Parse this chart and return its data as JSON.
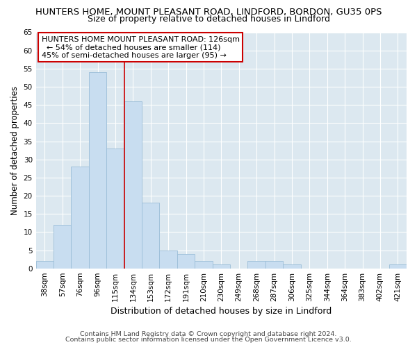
{
  "title": "HUNTERS HOME, MOUNT PLEASANT ROAD, LINDFORD, BORDON, GU35 0PS",
  "subtitle": "Size of property relative to detached houses in Lindford",
  "xlabel": "Distribution of detached houses by size in Lindford",
  "ylabel": "Number of detached properties",
  "bar_color": "#c8ddf0",
  "bar_edge_color": "#9bbdd8",
  "bin_labels": [
    "38sqm",
    "57sqm",
    "76sqm",
    "96sqm",
    "115sqm",
    "134sqm",
    "153sqm",
    "172sqm",
    "191sqm",
    "210sqm",
    "230sqm",
    "249sqm",
    "268sqm",
    "287sqm",
    "306sqm",
    "325sqm",
    "344sqm",
    "364sqm",
    "383sqm",
    "402sqm",
    "421sqm"
  ],
  "bar_heights": [
    2,
    12,
    28,
    54,
    33,
    46,
    18,
    5,
    4,
    2,
    1,
    0,
    2,
    2,
    1,
    0,
    0,
    0,
    0,
    0,
    1
  ],
  "ylim": [
    0,
    65
  ],
  "yticks": [
    0,
    5,
    10,
    15,
    20,
    25,
    30,
    35,
    40,
    45,
    50,
    55,
    60,
    65
  ],
  "vline_color": "#cc0000",
  "annotation_title": "HUNTERS HOME MOUNT PLEASANT ROAD: 126sqm",
  "annotation_line1": "  ← 54% of detached houses are smaller (114)",
  "annotation_line2": "45% of semi-detached houses are larger (95) →",
  "footer_line1": "Contains HM Land Registry data © Crown copyright and database right 2024.",
  "footer_line2": "Contains public sector information licensed under the Open Government Licence v3.0.",
  "background_color": "#dce8f0",
  "grid_color": "#ffffff",
  "title_fontsize": 9.5,
  "subtitle_fontsize": 9.0,
  "ylabel_fontsize": 8.5,
  "xlabel_fontsize": 9.0,
  "tick_fontsize": 7.5,
  "annotation_fontsize": 8.0,
  "footer_fontsize": 6.8
}
